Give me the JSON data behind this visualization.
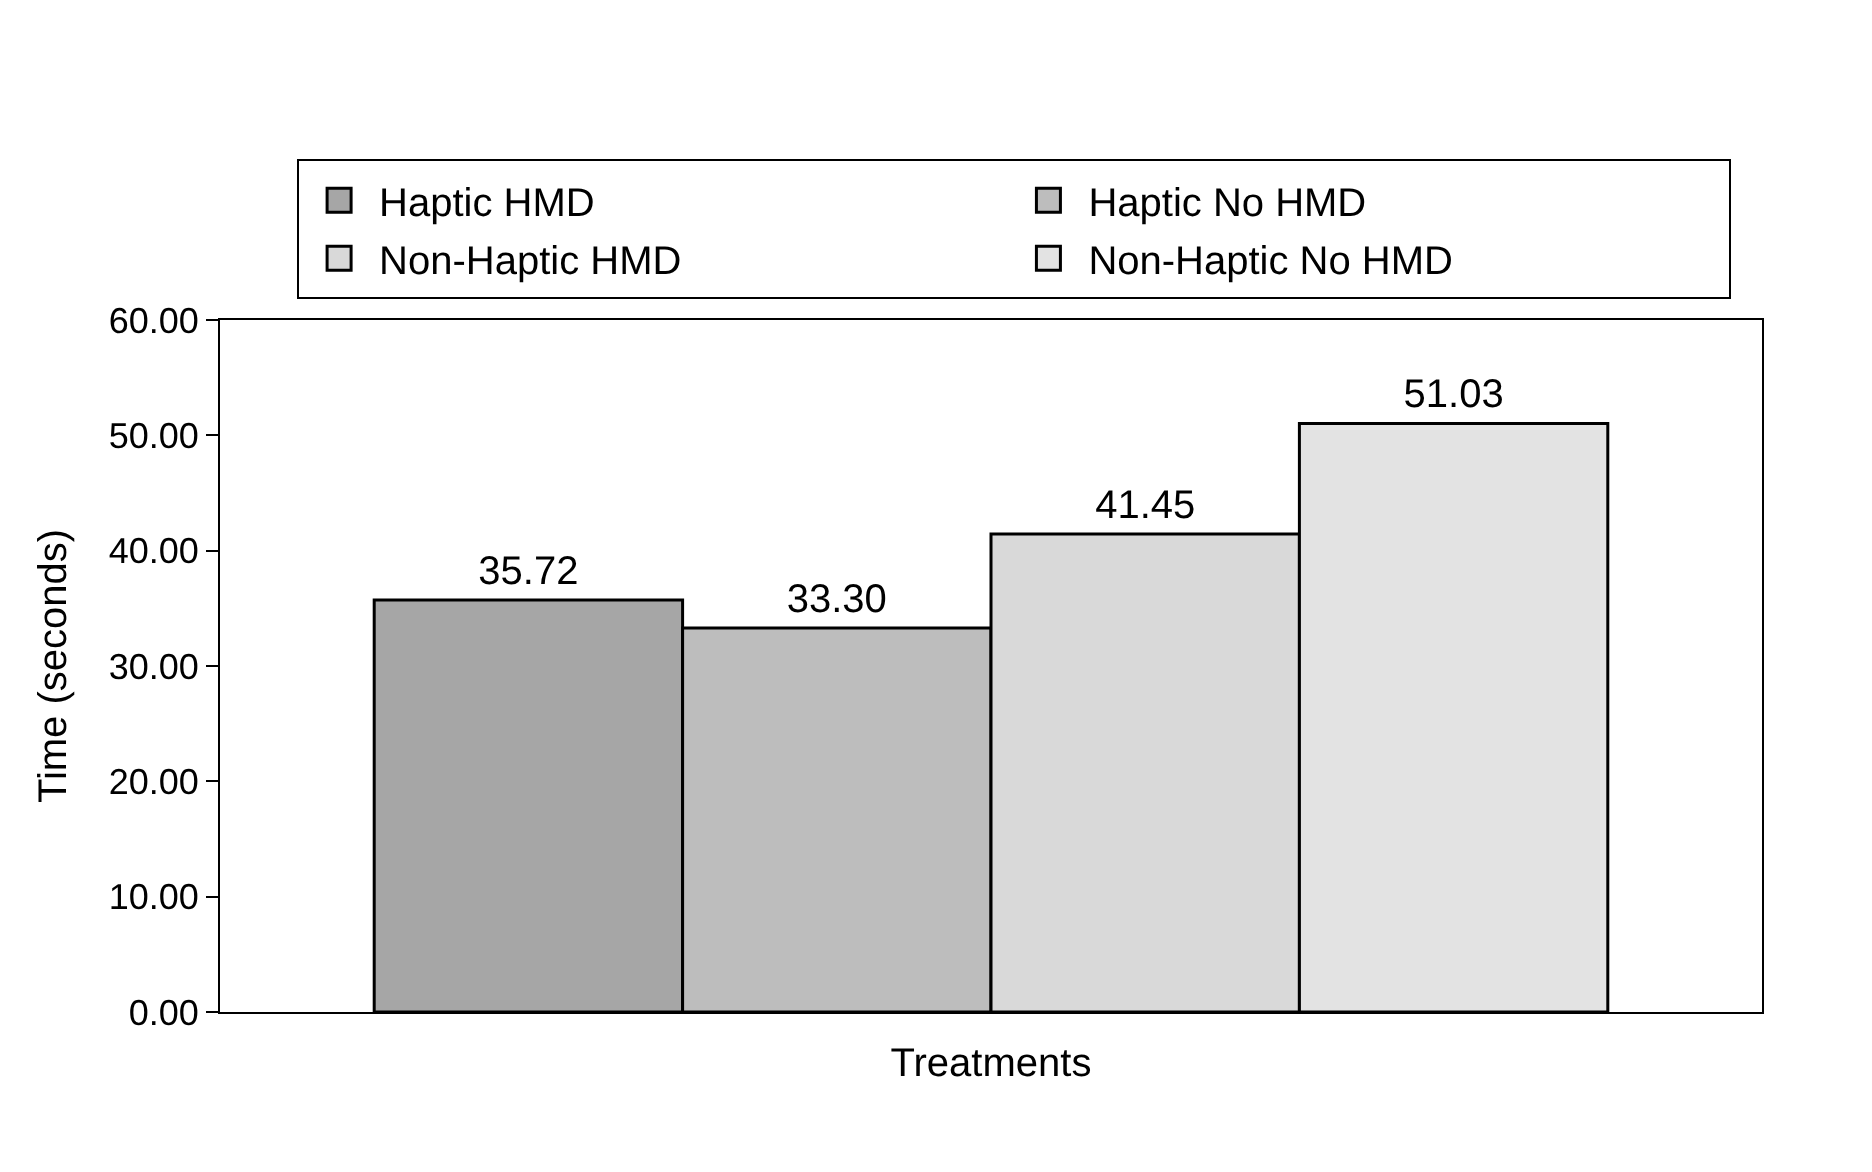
{
  "chart_data": {
    "type": "bar",
    "xlabel": "Treatments",
    "ylabel": "Time (seconds)",
    "categories": [
      null
    ],
    "series": [
      {
        "name": "Haptic HMD",
        "color": "#a6a6a6",
        "values": [
          35.72
        ],
        "value_labels": [
          "35.72"
        ]
      },
      {
        "name": "Haptic No HMD",
        "color": "#bdbdbd",
        "values": [
          33.3
        ],
        "value_labels": [
          "33.30"
        ]
      },
      {
        "name": "Non-Haptic HMD",
        "color": "#d9d9d9",
        "values": [
          41.45
        ],
        "value_labels": [
          "41.45"
        ]
      },
      {
        "name": "Non-Haptic No HMD",
        "color": "#e3e3e3",
        "values": [
          51.03
        ],
        "value_labels": [
          "51.03"
        ]
      }
    ],
    "ylim": [
      0,
      60
    ],
    "yticks": [
      {
        "value": 0,
        "label": "0.00"
      },
      {
        "value": 10,
        "label": "10.00"
      },
      {
        "value": 20,
        "label": "20.00"
      },
      {
        "value": 30,
        "label": "30.00"
      },
      {
        "value": 40,
        "label": "40.00"
      },
      {
        "value": 50,
        "label": "50.00"
      },
      {
        "value": 60,
        "label": "60.00"
      }
    ],
    "legend": "top"
  }
}
